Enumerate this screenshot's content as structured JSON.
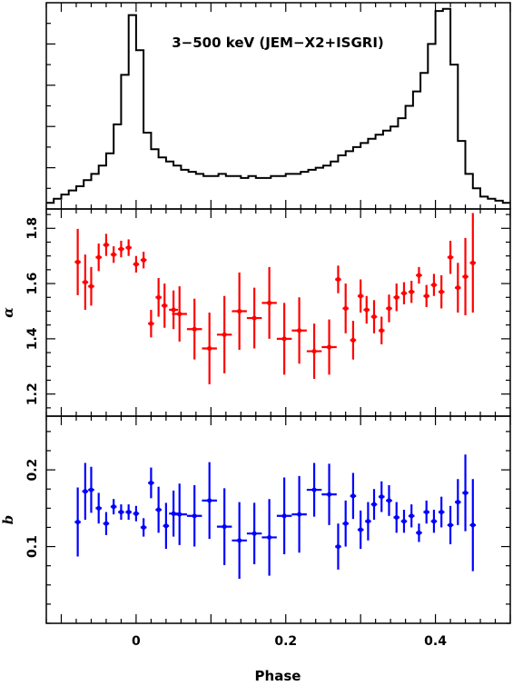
{
  "chart_data": [
    {
      "type": "line",
      "title": "3−500 keV (JEM−X2+ISGRI)",
      "xlabel": "",
      "ylabel": "",
      "xlim": [
        -0.12,
        0.5
      ],
      "ylim": [
        0,
        1
      ],
      "step": true,
      "color": "#000000",
      "bin_width": 0.01,
      "x": [
        -0.115,
        -0.105,
        -0.095,
        -0.085,
        -0.075,
        -0.065,
        -0.055,
        -0.045,
        -0.035,
        -0.025,
        -0.015,
        -0.005,
        0.005,
        0.015,
        0.025,
        0.035,
        0.045,
        0.055,
        0.065,
        0.075,
        0.085,
        0.095,
        0.105,
        0.115,
        0.125,
        0.135,
        0.145,
        0.155,
        0.165,
        0.175,
        0.185,
        0.195,
        0.205,
        0.215,
        0.225,
        0.235,
        0.245,
        0.255,
        0.265,
        0.275,
        0.285,
        0.295,
        0.305,
        0.315,
        0.325,
        0.335,
        0.345,
        0.355,
        0.365,
        0.375,
        0.385,
        0.395,
        0.405,
        0.415,
        0.425,
        0.435,
        0.445,
        0.455,
        0.465,
        0.475,
        0.485,
        0.495
      ],
      "values": [
        0.03,
        0.05,
        0.07,
        0.09,
        0.11,
        0.14,
        0.17,
        0.21,
        0.27,
        0.41,
        0.65,
        0.94,
        0.77,
        0.37,
        0.29,
        0.25,
        0.23,
        0.21,
        0.19,
        0.18,
        0.17,
        0.16,
        0.16,
        0.17,
        0.16,
        0.16,
        0.15,
        0.16,
        0.15,
        0.15,
        0.16,
        0.16,
        0.17,
        0.17,
        0.18,
        0.19,
        0.2,
        0.21,
        0.23,
        0.26,
        0.28,
        0.3,
        0.32,
        0.34,
        0.36,
        0.38,
        0.4,
        0.44,
        0.5,
        0.57,
        0.66,
        0.8,
        0.96,
        0.97,
        0.7,
        0.33,
        0.17,
        0.1,
        0.06,
        0.05,
        0.04,
        0.03
      ],
      "yticks_unlabeled": true
    },
    {
      "type": "scatter",
      "xlabel": "",
      "ylabel": "α",
      "xlim": [
        -0.12,
        0.5
      ],
      "ylim": [
        1.12,
        1.87
      ],
      "yticks": [
        1.2,
        1.4,
        1.6,
        1.8
      ],
      "ytick_labels": [
        "1.2",
        "1.4",
        "1.6",
        "1.8"
      ],
      "color": "#ff0000",
      "points": [
        {
          "x": -0.078,
          "y": 1.678,
          "yerr": 0.12,
          "xerr": 0.004
        },
        {
          "x": -0.068,
          "y": 1.605,
          "yerr": 0.1,
          "xerr": 0.004
        },
        {
          "x": -0.06,
          "y": 1.59,
          "yerr": 0.07,
          "xerr": 0.004
        },
        {
          "x": -0.05,
          "y": 1.695,
          "yerr": 0.05,
          "xerr": 0.004
        },
        {
          "x": -0.04,
          "y": 1.74,
          "yerr": 0.04,
          "xerr": 0.004
        },
        {
          "x": -0.03,
          "y": 1.705,
          "yerr": 0.03,
          "xerr": 0.004
        },
        {
          "x": -0.02,
          "y": 1.725,
          "yerr": 0.03,
          "xerr": 0.004
        },
        {
          "x": -0.01,
          "y": 1.73,
          "yerr": 0.03,
          "xerr": 0.004
        },
        {
          "x": 0.0,
          "y": 1.67,
          "yerr": 0.03,
          "xerr": 0.004
        },
        {
          "x": 0.01,
          "y": 1.685,
          "yerr": 0.03,
          "xerr": 0.004
        },
        {
          "x": 0.02,
          "y": 1.455,
          "yerr": 0.05,
          "xerr": 0.004
        },
        {
          "x": 0.03,
          "y": 1.55,
          "yerr": 0.07,
          "xerr": 0.004
        },
        {
          "x": 0.038,
          "y": 1.52,
          "yerr": 0.08,
          "xerr": 0.004
        },
        {
          "x": 0.05,
          "y": 1.505,
          "yerr": 0.07,
          "xerr": 0.006
        },
        {
          "x": 0.058,
          "y": 1.49,
          "yerr": 0.1,
          "xerr": 0.01
        },
        {
          "x": 0.078,
          "y": 1.435,
          "yerr": 0.11,
          "xerr": 0.01
        },
        {
          "x": 0.098,
          "y": 1.365,
          "yerr": 0.13,
          "xerr": 0.01
        },
        {
          "x": 0.118,
          "y": 1.415,
          "yerr": 0.14,
          "xerr": 0.01
        },
        {
          "x": 0.138,
          "y": 1.5,
          "yerr": 0.14,
          "xerr": 0.01
        },
        {
          "x": 0.158,
          "y": 1.475,
          "yerr": 0.11,
          "xerr": 0.01
        },
        {
          "x": 0.178,
          "y": 1.53,
          "yerr": 0.13,
          "xerr": 0.01
        },
        {
          "x": 0.198,
          "y": 1.4,
          "yerr": 0.13,
          "xerr": 0.01
        },
        {
          "x": 0.218,
          "y": 1.43,
          "yerr": 0.12,
          "xerr": 0.01
        },
        {
          "x": 0.238,
          "y": 1.355,
          "yerr": 0.1,
          "xerr": 0.01
        },
        {
          "x": 0.258,
          "y": 1.37,
          "yerr": 0.1,
          "xerr": 0.01
        },
        {
          "x": 0.27,
          "y": 1.615,
          "yerr": 0.05,
          "xerr": 0.004
        },
        {
          "x": 0.28,
          "y": 1.51,
          "yerr": 0.09,
          "xerr": 0.004
        },
        {
          "x": 0.29,
          "y": 1.395,
          "yerr": 0.07,
          "xerr": 0.004
        },
        {
          "x": 0.3,
          "y": 1.555,
          "yerr": 0.06,
          "xerr": 0.004
        },
        {
          "x": 0.308,
          "y": 1.505,
          "yerr": 0.05,
          "xerr": 0.004
        },
        {
          "x": 0.318,
          "y": 1.48,
          "yerr": 0.06,
          "xerr": 0.004
        },
        {
          "x": 0.328,
          "y": 1.43,
          "yerr": 0.05,
          "xerr": 0.004
        },
        {
          "x": 0.338,
          "y": 1.51,
          "yerr": 0.05,
          "xerr": 0.004
        },
        {
          "x": 0.348,
          "y": 1.55,
          "yerr": 0.05,
          "xerr": 0.004
        },
        {
          "x": 0.358,
          "y": 1.565,
          "yerr": 0.04,
          "xerr": 0.004
        },
        {
          "x": 0.368,
          "y": 1.57,
          "yerr": 0.04,
          "xerr": 0.004
        },
        {
          "x": 0.378,
          "y": 1.63,
          "yerr": 0.03,
          "xerr": 0.004
        },
        {
          "x": 0.388,
          "y": 1.555,
          "yerr": 0.04,
          "xerr": 0.004
        },
        {
          "x": 0.398,
          "y": 1.595,
          "yerr": 0.04,
          "xerr": 0.004
        },
        {
          "x": 0.408,
          "y": 1.57,
          "yerr": 0.06,
          "xerr": 0.004
        },
        {
          "x": 0.42,
          "y": 1.695,
          "yerr": 0.06,
          "xerr": 0.004
        },
        {
          "x": 0.43,
          "y": 1.585,
          "yerr": 0.09,
          "xerr": 0.004
        },
        {
          "x": 0.44,
          "y": 1.625,
          "yerr": 0.14,
          "xerr": 0.004
        },
        {
          "x": 0.45,
          "y": 1.675,
          "yerr": 0.18,
          "xerr": 0.004
        }
      ]
    },
    {
      "type": "scatter",
      "xlabel": "Phase",
      "ylabel": "b",
      "xlim": [
        -0.12,
        0.5
      ],
      "ylim": [
        0.0,
        0.27
      ],
      "yticks": [
        0.1,
        0.2
      ],
      "ytick_labels": [
        "0.1",
        "0.2"
      ],
      "xticks": [
        0,
        0.2,
        0.4
      ],
      "xtick_labels": [
        "0",
        "0.2",
        "0.4"
      ],
      "color": "#0000ff",
      "points": [
        {
          "x": -0.078,
          "y": 0.132,
          "yerr": 0.045,
          "xerr": 0.004
        },
        {
          "x": -0.068,
          "y": 0.172,
          "yerr": 0.037,
          "xerr": 0.004
        },
        {
          "x": -0.06,
          "y": 0.174,
          "yerr": 0.03,
          "xerr": 0.004
        },
        {
          "x": -0.05,
          "y": 0.15,
          "yerr": 0.02,
          "xerr": 0.004
        },
        {
          "x": -0.04,
          "y": 0.13,
          "yerr": 0.015,
          "xerr": 0.004
        },
        {
          "x": -0.03,
          "y": 0.152,
          "yerr": 0.01,
          "xerr": 0.004
        },
        {
          "x": -0.02,
          "y": 0.145,
          "yerr": 0.01,
          "xerr": 0.004
        },
        {
          "x": -0.01,
          "y": 0.145,
          "yerr": 0.01,
          "xerr": 0.004
        },
        {
          "x": 0.0,
          "y": 0.143,
          "yerr": 0.01,
          "xerr": 0.004
        },
        {
          "x": 0.01,
          "y": 0.125,
          "yerr": 0.012,
          "xerr": 0.004
        },
        {
          "x": 0.02,
          "y": 0.183,
          "yerr": 0.02,
          "xerr": 0.004
        },
        {
          "x": 0.03,
          "y": 0.148,
          "yerr": 0.03,
          "xerr": 0.004
        },
        {
          "x": 0.04,
          "y": 0.127,
          "yerr": 0.03,
          "xerr": 0.004
        },
        {
          "x": 0.05,
          "y": 0.143,
          "yerr": 0.03,
          "xerr": 0.006
        },
        {
          "x": 0.058,
          "y": 0.142,
          "yerr": 0.04,
          "xerr": 0.01
        },
        {
          "x": 0.078,
          "y": 0.14,
          "yerr": 0.04,
          "xerr": 0.01
        },
        {
          "x": 0.098,
          "y": 0.16,
          "yerr": 0.05,
          "xerr": 0.01
        },
        {
          "x": 0.118,
          "y": 0.126,
          "yerr": 0.05,
          "xerr": 0.01
        },
        {
          "x": 0.138,
          "y": 0.108,
          "yerr": 0.05,
          "xerr": 0.01
        },
        {
          "x": 0.158,
          "y": 0.117,
          "yerr": 0.04,
          "xerr": 0.01
        },
        {
          "x": 0.178,
          "y": 0.112,
          "yerr": 0.05,
          "xerr": 0.01
        },
        {
          "x": 0.198,
          "y": 0.14,
          "yerr": 0.05,
          "xerr": 0.01
        },
        {
          "x": 0.218,
          "y": 0.142,
          "yerr": 0.05,
          "xerr": 0.01
        },
        {
          "x": 0.238,
          "y": 0.174,
          "yerr": 0.035,
          "xerr": 0.01
        },
        {
          "x": 0.258,
          "y": 0.168,
          "yerr": 0.04,
          "xerr": 0.01
        },
        {
          "x": 0.27,
          "y": 0.1,
          "yerr": 0.03,
          "xerr": 0.004
        },
        {
          "x": 0.28,
          "y": 0.13,
          "yerr": 0.03,
          "xerr": 0.004
        },
        {
          "x": 0.29,
          "y": 0.166,
          "yerr": 0.03,
          "xerr": 0.004
        },
        {
          "x": 0.3,
          "y": 0.122,
          "yerr": 0.025,
          "xerr": 0.004
        },
        {
          "x": 0.31,
          "y": 0.133,
          "yerr": 0.025,
          "xerr": 0.004
        },
        {
          "x": 0.318,
          "y": 0.155,
          "yerr": 0.02,
          "xerr": 0.004
        },
        {
          "x": 0.328,
          "y": 0.165,
          "yerr": 0.02,
          "xerr": 0.004
        },
        {
          "x": 0.338,
          "y": 0.16,
          "yerr": 0.02,
          "xerr": 0.004
        },
        {
          "x": 0.348,
          "y": 0.138,
          "yerr": 0.02,
          "xerr": 0.004
        },
        {
          "x": 0.358,
          "y": 0.133,
          "yerr": 0.015,
          "xerr": 0.004
        },
        {
          "x": 0.368,
          "y": 0.14,
          "yerr": 0.015,
          "xerr": 0.004
        },
        {
          "x": 0.378,
          "y": 0.118,
          "yerr": 0.012,
          "xerr": 0.004
        },
        {
          "x": 0.388,
          "y": 0.145,
          "yerr": 0.015,
          "xerr": 0.004
        },
        {
          "x": 0.398,
          "y": 0.133,
          "yerr": 0.015,
          "xerr": 0.004
        },
        {
          "x": 0.408,
          "y": 0.145,
          "yerr": 0.02,
          "xerr": 0.004
        },
        {
          "x": 0.42,
          "y": 0.128,
          "yerr": 0.025,
          "xerr": 0.004
        },
        {
          "x": 0.43,
          "y": 0.158,
          "yerr": 0.03,
          "xerr": 0.004
        },
        {
          "x": 0.44,
          "y": 0.17,
          "yerr": 0.05,
          "xerr": 0.004
        },
        {
          "x": 0.45,
          "y": 0.128,
          "yerr": 0.06,
          "xerr": 0.004
        }
      ]
    }
  ]
}
